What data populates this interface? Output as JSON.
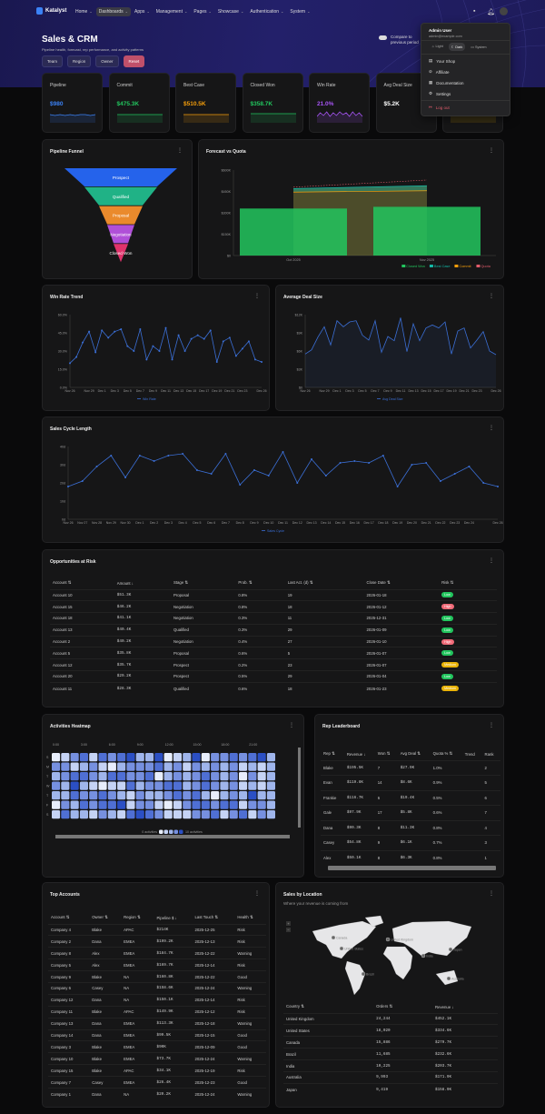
{
  "app": {
    "name": "Katalyst"
  },
  "nav": [
    {
      "label": "Home"
    },
    {
      "label": "Dashboards",
      "active": true
    },
    {
      "label": "Apps"
    },
    {
      "label": "Management"
    },
    {
      "label": "Pages"
    },
    {
      "label": "Showcase"
    },
    {
      "label": "Authentication"
    },
    {
      "label": "System"
    }
  ],
  "page": {
    "title": "Sales & CRM",
    "subtitle": "Pipeline health, forecast, rep performance, and activity patterns",
    "compare_label": "Compare to previous period",
    "filters": [
      "Team",
      "Region",
      "Owner"
    ],
    "reset_label": "Reset"
  },
  "user_menu": {
    "name": "Admin User",
    "email": "admin@example.com",
    "themes": [
      {
        "label": "Light",
        "icon": "sun-icon"
      },
      {
        "label": "Dark",
        "icon": "moon-icon",
        "active": true
      },
      {
        "label": "System",
        "icon": "monitor-icon"
      }
    ],
    "items": [
      {
        "label": "Your Shop",
        "icon": "shop-icon"
      },
      {
        "label": "Affiliate",
        "icon": "affiliate-icon"
      },
      {
        "label": "Documentation",
        "icon": "document-icon"
      },
      {
        "label": "Settings",
        "icon": "gear-icon"
      }
    ],
    "logout_label": "Log out"
  },
  "kpis": [
    {
      "label": "Pipeline",
      "value": "$980",
      "color": "#3b82f6"
    },
    {
      "label": "Commit",
      "value": "$475.3K",
      "color": "#22c55e"
    },
    {
      "label": "Best Case",
      "value": "$510.5K",
      "color": "#f59e0b"
    },
    {
      "label": "Closed Won",
      "value": "$358.7K",
      "color": "#22c55e"
    },
    {
      "label": "Win Rate",
      "value": "21.0%",
      "color": "#a855f7"
    },
    {
      "label": "Avg Deal Size",
      "value": "$5.2K",
      "color": "#ffffff"
    },
    {
      "label": "",
      "value": "",
      "color": "#eab308"
    }
  ],
  "funnel": {
    "title": "Pipeline Funnel",
    "stages": [
      {
        "label": "Prospect",
        "color": "#2563eb"
      },
      {
        "label": "Qualified",
        "color": "#20b286"
      },
      {
        "label": "Proposal",
        "color": "#ea8a2c"
      },
      {
        "label": "Negotiation",
        "color": "#b04fd8"
      },
      {
        "label": "Closed Won",
        "color": "#e0336c"
      }
    ]
  },
  "chart_data": [
    {
      "id": "forecast",
      "type": "bar",
      "title": "Forecast vs Quota",
      "categories": [
        "Oct 2025",
        "Nov 2025"
      ],
      "ylim": [
        0,
        600000
      ],
      "yticks": [
        "$0",
        "$150K",
        "$300K",
        "$450K",
        "$600K"
      ],
      "legend_position": "bottom",
      "series": [
        {
          "name": "Closed Won",
          "type": "bar",
          "color": "#22c55e",
          "values": [
            330000,
            342000
          ]
        },
        {
          "name": "Best Case",
          "type": "area",
          "color": "#14b8a6",
          "values": [
            470000,
            490000
          ]
        },
        {
          "name": "Commit",
          "type": "area",
          "color": "#f59e0b",
          "values": [
            445000,
            455000
          ]
        },
        {
          "name": "Quota",
          "type": "line-dashed",
          "color": "#e05b6b",
          "values": [
            480000,
            530000
          ]
        }
      ]
    },
    {
      "id": "winrate",
      "type": "line",
      "title": "Win Rate Trend",
      "x": [
        "Nov 26",
        "Nov 27",
        "Nov 28",
        "Nov 29",
        "Nov 30",
        "Dec 1",
        "Dec 2",
        "Dec 3",
        "Dec 4",
        "Dec 5",
        "Dec 6",
        "Dec 7",
        "Dec 8",
        "Dec 9",
        "Dec 10",
        "Dec 11",
        "Dec 12",
        "Dec 13",
        "Dec 14",
        "Dec 15",
        "Dec 16",
        "Dec 17",
        "Dec 18",
        "Dec 19",
        "Dec 20",
        "Dec 21",
        "Dec 22",
        "Dec 23",
        "Dec 24",
        "Dec 25",
        "Dec 26"
      ],
      "xticks": [
        "Nov 26",
        "Nov 29",
        "Dec 1",
        "Dec 3",
        "Dec 5",
        "Dec 7",
        "Dec 9",
        "Dec 11",
        "Dec 13",
        "Dec 15",
        "Dec 17",
        "Dec 19",
        "Dec 21",
        "Dec 23",
        "Dec 26"
      ],
      "ylim": [
        0,
        60
      ],
      "yticks": [
        "0.0%",
        "15.0%",
        "30.0%",
        "45.0%",
        "60.0%"
      ],
      "series": [
        {
          "name": "Win Rate",
          "color": "#3b6fd6",
          "markers": true,
          "values": [
            20,
            25,
            37,
            46,
            29,
            47,
            41,
            46,
            48,
            34,
            30,
            48,
            23,
            34,
            30,
            49,
            23,
            43,
            30,
            40,
            43,
            40,
            47,
            21,
            38,
            41,
            26,
            32,
            38,
            23,
            21
          ]
        }
      ]
    },
    {
      "id": "avgdeal",
      "type": "area",
      "title": "Average Deal Size",
      "x": [
        "Nov 26",
        "Nov 27",
        "Nov 28",
        "Nov 29",
        "Nov 30",
        "Dec 1",
        "Dec 2",
        "Dec 3",
        "Dec 4",
        "Dec 5",
        "Dec 6",
        "Dec 7",
        "Dec 8",
        "Dec 9",
        "Dec 10",
        "Dec 11",
        "Dec 12",
        "Dec 13",
        "Dec 14",
        "Dec 15",
        "Dec 16",
        "Dec 17",
        "Dec 18",
        "Dec 19",
        "Dec 20",
        "Dec 21",
        "Dec 22",
        "Dec 23",
        "Dec 24",
        "Dec 25",
        "Dec 26"
      ],
      "xticks": [
        "Nov 26",
        "Nov 29",
        "Dec 1",
        "Dec 3",
        "Dec 5",
        "Dec 7",
        "Dec 9",
        "Dec 11",
        "Dec 13",
        "Dec 15",
        "Dec 17",
        "Dec 19",
        "Dec 21",
        "Dec 23",
        "Dec 26"
      ],
      "ylim": [
        0,
        12000
      ],
      "yticks": [
        "$0",
        "$3K",
        "$6K",
        "$9K",
        "$12K"
      ],
      "series": [
        {
          "name": "Avg Deal Size",
          "color": "#3b6fd6",
          "markers": false,
          "values": [
            5500,
            6200,
            8300,
            10000,
            7000,
            11000,
            10000,
            10800,
            11000,
            8600,
            7800,
            11000,
            5800,
            8400,
            7700,
            11500,
            5900,
            10500,
            7700,
            9800,
            10300,
            9800,
            10800,
            5500,
            9300,
            9800,
            6500,
            7800,
            9200,
            6000,
            5400
          ]
        }
      ]
    },
    {
      "id": "cycle",
      "type": "line",
      "title": "Sales Cycle Length",
      "x": [
        "Nov 26",
        "Nov 27",
        "Nov 28",
        "Nov 29",
        "Nov 30",
        "Dec 1",
        "Dec 2",
        "Dec 3",
        "Dec 4",
        "Dec 5",
        "Dec 6",
        "Dec 7",
        "Dec 8",
        "Dec 9",
        "Dec 10",
        "Dec 11",
        "Dec 12",
        "Dec 13",
        "Dec 14",
        "Dec 15",
        "Dec 16",
        "Dec 17",
        "Dec 18",
        "Dec 19",
        "Dec 20",
        "Dec 21",
        "Dec 22",
        "Dec 23",
        "Dec 24",
        "Dec 25",
        "Dec 26"
      ],
      "xticks": [
        "Nov 26",
        "Nov 27",
        "Nov 28",
        "Nov 29",
        "Nov 30",
        "Dec 1",
        "Dec 2",
        "Dec 3",
        "Dec 4",
        "Dec 5",
        "Dec 6",
        "Dec 7",
        "Dec 8",
        "Dec 9",
        "Dec 10",
        "Dec 11",
        "Dec 12",
        "Dec 13",
        "Dec 14",
        "Dec 15",
        "Dec 16",
        "Dec 17",
        "Dec 18",
        "Dec 19",
        "Dec 20",
        "Dec 21",
        "Dec 22",
        "Dec 23",
        "Dec 24",
        "Dec 26"
      ],
      "ylim": [
        0,
        40
      ],
      "yticks": [
        "0d",
        "10d",
        "20d",
        "30d",
        "40d"
      ],
      "series": [
        {
          "name": "Sales Cycle",
          "color": "#3b6fd6",
          "markers": true,
          "values": [
            18,
            21,
            29,
            35,
            23,
            35,
            32,
            35,
            36,
            27,
            25,
            36,
            19,
            27,
            24,
            37,
            20,
            33,
            24,
            31,
            32,
            31,
            35,
            18,
            30,
            31,
            21,
            25,
            29,
            20,
            18
          ]
        }
      ]
    },
    {
      "id": "heatmap",
      "type": "heatmap",
      "title": "Activities Heatmap",
      "x": [
        "0:00",
        "1:00",
        "2:00",
        "3:00",
        "4:00",
        "5:00",
        "6:00",
        "7:00",
        "8:00",
        "9:00",
        "10:00",
        "11:00",
        "12:00",
        "13:00",
        "14:00",
        "15:00",
        "16:00",
        "17:00",
        "18:00",
        "19:00",
        "20:00",
        "21:00",
        "22:00",
        "23:00"
      ],
      "xticks": [
        "0:00",
        "3:00",
        "6:00",
        "9:00",
        "12:00",
        "15:00",
        "18:00",
        "21:00"
      ],
      "y": [
        "S",
        "M",
        "T",
        "W",
        "T",
        "F",
        "S"
      ],
      "legend": {
        "min_label": "0 activities",
        "max_label": "10 activities"
      },
      "values": [
        [
          0,
          2,
          5,
          8,
          2,
          8,
          6,
          8,
          9,
          4,
          3,
          9,
          0,
          2,
          3,
          9,
          0,
          6,
          5,
          8,
          6,
          7,
          9,
          4
        ],
        [
          6,
          6,
          2,
          4,
          6,
          1,
          0,
          3,
          6,
          6,
          5,
          8,
          3,
          6,
          1,
          5,
          4,
          6,
          3,
          5,
          2,
          4,
          2,
          3
        ],
        [
          3,
          6,
          7,
          7,
          6,
          4,
          8,
          7,
          6,
          5,
          8,
          0,
          4,
          6,
          3,
          5,
          8,
          6,
          4,
          6,
          0,
          5,
          1,
          3
        ],
        [
          6,
          4,
          9,
          3,
          1,
          0,
          2,
          1,
          7,
          4,
          5,
          6,
          7,
          8,
          4,
          6,
          8,
          6,
          3,
          5,
          2,
          3,
          2,
          4
        ],
        [
          4,
          3,
          7,
          5,
          6,
          7,
          6,
          4,
          2,
          5,
          4,
          3,
          6,
          7,
          5,
          7,
          3,
          0,
          4,
          6,
          4,
          9,
          4,
          3
        ],
        [
          0,
          5,
          3,
          7,
          6,
          8,
          8,
          9,
          1,
          6,
          6,
          2,
          0,
          1,
          5,
          7,
          8,
          5,
          8,
          7,
          1,
          5,
          5,
          3
        ],
        [
          2,
          8,
          4,
          4,
          1,
          6,
          4,
          1,
          7,
          9,
          8,
          6,
          1,
          1,
          1,
          5,
          5,
          8,
          2,
          6,
          7,
          2,
          6,
          3
        ]
      ]
    }
  ],
  "opportunities": {
    "title": "Opportunities at Risk",
    "columns": [
      "Account",
      "Amount",
      "Stage",
      "Prob.",
      "Last Act. (d)",
      "Close Date",
      "Risk"
    ],
    "rows": [
      [
        "Account 10",
        "$51.3K",
        "Proposal",
        "0.8%",
        "19",
        "2026-01-18",
        "Low"
      ],
      [
        "Account 15",
        "$46.2K",
        "Negotiation",
        "0.8%",
        "18",
        "2026-01-12",
        "High"
      ],
      [
        "Account 18",
        "$41.1K",
        "Negotiation",
        "0.3%",
        "11",
        "2025-12-31",
        "Low"
      ],
      [
        "Account 13",
        "$40.4K",
        "Qualified",
        "0.3%",
        "29",
        "2026-01-09",
        "Low"
      ],
      [
        "Account 2",
        "$40.2K",
        "Negotiation",
        "0.4%",
        "27",
        "2026-01-10",
        "High"
      ],
      [
        "Account 5",
        "$35.8K",
        "Proposal",
        "0.6%",
        "5",
        "2026-01-07",
        "Low"
      ],
      [
        "Account 12",
        "$35.7K",
        "Prospect",
        "0.2%",
        "23",
        "2026-01-07",
        "Medium"
      ],
      [
        "Account 20",
        "$29.2K",
        "Prospect",
        "0.5%",
        "29",
        "2026-01-04",
        "Low"
      ],
      [
        "Account 11",
        "$28.3K",
        "Qualified",
        "0.6%",
        "18",
        "2026-01-23",
        "Medium"
      ]
    ],
    "risk_colors": {
      "Low": "#22c55e",
      "High": "#f06a78",
      "Medium": "#eab308"
    }
  },
  "leaderboard": {
    "title": "Rep Leaderboard",
    "columns": [
      "Rep",
      "Revenue",
      "Won",
      "Avg Deal",
      "Quota %",
      "Trend",
      "Rank"
    ],
    "rows": [
      [
        "Blake",
        "$195.5K",
        "7",
        "$27.9K",
        "1.0%",
        "",
        "2"
      ],
      [
        "Evan",
        "$119.8K",
        "14",
        "$8.6K",
        "0.9%",
        "",
        "5"
      ],
      [
        "Frankie",
        "$116.7K",
        "6",
        "$19.4K",
        "0.5%",
        "",
        "6"
      ],
      [
        "Gale",
        "$97.9K",
        "17",
        "$5.8K",
        "0.6%",
        "",
        "7"
      ],
      [
        "Dana",
        "$90.3K",
        "8",
        "$11.3K",
        "0.8%",
        "",
        "4"
      ],
      [
        "Casey",
        "$54.8K",
        "9",
        "$6.1K",
        "0.7%",
        "",
        "3"
      ],
      [
        "Alex",
        "$50.1K",
        "8",
        "$6.3K",
        "0.8%",
        "",
        "1"
      ]
    ]
  },
  "top_accounts": {
    "title": "Top Accounts",
    "columns": [
      "Account",
      "Owner",
      "Region",
      "Pipeline $",
      "Last Touch",
      "Health"
    ],
    "rows": [
      [
        "Company 4",
        "Blake",
        "APAC",
        "$214K",
        "2025-12-25",
        "Risk"
      ],
      [
        "Company 2",
        "Dana",
        "EMEA",
        "$199.2K",
        "2025-12-13",
        "Risk"
      ],
      [
        "Company 8",
        "Alex",
        "EMEA",
        "$184.7K",
        "2025-12-22",
        "Warning"
      ],
      [
        "Company 5",
        "Alex",
        "EMEA",
        "$169.7K",
        "2025-12-14",
        "Risk"
      ],
      [
        "Company 9",
        "Blake",
        "NA",
        "$160.8K",
        "2025-12-22",
        "Good"
      ],
      [
        "Company 6",
        "Casey",
        "NA",
        "$158.6K",
        "2025-12-24",
        "Warning"
      ],
      [
        "Company 12",
        "Dana",
        "NA",
        "$150.1K",
        "2025-12-14",
        "Risk"
      ],
      [
        "Company 11",
        "Blake",
        "APAC",
        "$149.9K",
        "2025-12-12",
        "Risk"
      ],
      [
        "Company 13",
        "Dana",
        "EMEA",
        "$113.3K",
        "2025-12-18",
        "Warning"
      ],
      [
        "Company 14",
        "Dana",
        "EMEA",
        "$99.5K",
        "2025-12-15",
        "Good"
      ],
      [
        "Company 3",
        "Blake",
        "EMEA",
        "$90K",
        "2025-12-09",
        "Good"
      ],
      [
        "Company 10",
        "Blake",
        "EMEA",
        "$73.7K",
        "2025-12-24",
        "Warning"
      ],
      [
        "Company 15",
        "Blake",
        "APAC",
        "$34.1K",
        "2025-12-19",
        "Risk"
      ],
      [
        "Company 7",
        "Casey",
        "EMEA",
        "$26.4K",
        "2025-12-23",
        "Good"
      ],
      [
        "Company 1",
        "Dana",
        "NA",
        "$20.2K",
        "2025-12-24",
        "Warning"
      ]
    ]
  },
  "locations": {
    "title": "Sales by Location",
    "subtitle": "Where your revenue is coming from",
    "columns": [
      "Country",
      "Orders",
      "Revenue"
    ],
    "rows": [
      [
        "United Kingdom",
        "24,244",
        "$452.1K"
      ],
      [
        "United States",
        "18,020",
        "$334.6K"
      ],
      [
        "Canada",
        "15,886",
        "$279.7K"
      ],
      [
        "Brazil",
        "11,685",
        "$232.6K"
      ],
      [
        "India",
        "10,225",
        "$203.7K"
      ],
      [
        "Australia",
        "9,993",
        "$171.9K"
      ],
      [
        "Japan",
        "9,419",
        "$158.9K"
      ]
    ]
  }
}
